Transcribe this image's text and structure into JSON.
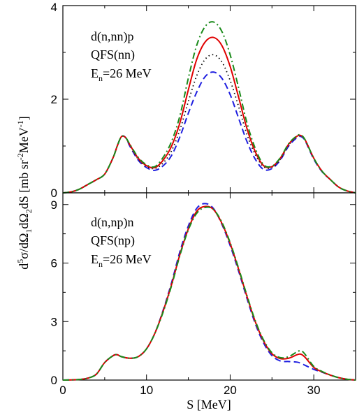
{
  "chart_data": [
    {
      "type": "line",
      "panel": "top",
      "annotation": [
        "d(n,nn)p",
        "QFS(nn)",
        "E",
        "n",
        "=26 MeV"
      ],
      "xlim": [
        0,
        35
      ],
      "ylim": [
        0,
        4
      ],
      "xticks": [
        0,
        10,
        20,
        30
      ],
      "yticks": [
        0,
        2,
        4
      ],
      "tick_labels_y": [
        "0",
        "2",
        "4"
      ],
      "grid": false,
      "series": [
        {
          "color": "#1f1fe0",
          "style": "dashed",
          "x": [
            0,
            1,
            2,
            3,
            4,
            5,
            6,
            6.5,
            7,
            7.5,
            8,
            9,
            10,
            11,
            12,
            13,
            14,
            15,
            16,
            17,
            18,
            19,
            20,
            21,
            22,
            23,
            24,
            25,
            26,
            27,
            28,
            28.5,
            29,
            30,
            31,
            32,
            33,
            34,
            35
          ],
          "y": [
            0,
            0.02,
            0.08,
            0.18,
            0.28,
            0.4,
            0.75,
            1.0,
            1.2,
            1.18,
            1.0,
            0.7,
            0.54,
            0.48,
            0.58,
            0.8,
            1.2,
            1.7,
            2.15,
            2.48,
            2.58,
            2.45,
            2.1,
            1.6,
            1.1,
            0.72,
            0.5,
            0.52,
            0.7,
            1.0,
            1.18,
            1.2,
            1.1,
            0.72,
            0.45,
            0.28,
            0.12,
            0.04,
            0
          ]
        },
        {
          "color": "#000000",
          "style": "dotted",
          "x": [
            0,
            1,
            2,
            3,
            4,
            5,
            6,
            6.5,
            7,
            7.5,
            8,
            9,
            10,
            11,
            12,
            13,
            14,
            15,
            16,
            17,
            18,
            19,
            20,
            21,
            22,
            23,
            24,
            25,
            26,
            27,
            28,
            28.5,
            29,
            30,
            31,
            32,
            33,
            34,
            35
          ],
          "y": [
            0,
            0.02,
            0.08,
            0.18,
            0.28,
            0.4,
            0.75,
            1.0,
            1.2,
            1.18,
            1.02,
            0.72,
            0.56,
            0.52,
            0.64,
            0.9,
            1.35,
            1.95,
            2.5,
            2.85,
            2.95,
            2.8,
            2.4,
            1.85,
            1.25,
            0.82,
            0.56,
            0.54,
            0.72,
            1.02,
            1.2,
            1.22,
            1.12,
            0.74,
            0.46,
            0.28,
            0.12,
            0.04,
            0
          ]
        },
        {
          "color": "#e00000",
          "style": "solid",
          "x": [
            0,
            1,
            2,
            3,
            4,
            5,
            6,
            6.5,
            7,
            7.5,
            8,
            9,
            10,
            11,
            12,
            13,
            14,
            15,
            16,
            17,
            18,
            19,
            20,
            21,
            22,
            23,
            24,
            25,
            26,
            27,
            28,
            28.5,
            29,
            30,
            31,
            32,
            33,
            34,
            35
          ],
          "y": [
            0,
            0.02,
            0.08,
            0.18,
            0.28,
            0.4,
            0.75,
            1.0,
            1.2,
            1.18,
            1.03,
            0.74,
            0.58,
            0.54,
            0.7,
            1.0,
            1.5,
            2.2,
            2.85,
            3.22,
            3.32,
            3.15,
            2.7,
            2.05,
            1.38,
            0.88,
            0.58,
            0.56,
            0.74,
            1.04,
            1.21,
            1.22,
            1.12,
            0.74,
            0.46,
            0.28,
            0.12,
            0.04,
            0
          ]
        },
        {
          "color": "#1a8a1a",
          "style": "dashdot",
          "x": [
            0,
            1,
            2,
            3,
            4,
            5,
            6,
            6.5,
            7,
            7.5,
            8,
            9,
            10,
            11,
            12,
            13,
            14,
            15,
            16,
            17,
            18,
            19,
            20,
            21,
            22,
            23,
            24,
            25,
            26,
            27,
            28,
            28.5,
            29,
            30,
            31,
            32,
            33,
            34,
            35
          ],
          "y": [
            0,
            0.02,
            0.08,
            0.18,
            0.28,
            0.4,
            0.75,
            1.0,
            1.2,
            1.18,
            1.04,
            0.76,
            0.6,
            0.56,
            0.76,
            1.1,
            1.65,
            2.45,
            3.15,
            3.55,
            3.65,
            3.45,
            2.95,
            2.25,
            1.5,
            0.95,
            0.6,
            0.57,
            0.75,
            1.05,
            1.22,
            1.23,
            1.12,
            0.74,
            0.46,
            0.28,
            0.12,
            0.04,
            0
          ]
        }
      ]
    },
    {
      "type": "line",
      "panel": "bottom",
      "annotation": [
        "d(n,np)n",
        "QFS(np)",
        "E",
        "n",
        "=26 MeV"
      ],
      "xlim": [
        0,
        35
      ],
      "ylim": [
        0,
        9.6
      ],
      "xticks": [
        0,
        10,
        20,
        30
      ],
      "yticks": [
        0,
        3,
        6,
        9
      ],
      "tick_labels_y": [
        "0",
        "3",
        "6",
        "9"
      ],
      "tick_labels_x": [
        "0",
        "10",
        "20",
        "30"
      ],
      "xlabel": "S [MeV]",
      "grid": false,
      "series": [
        {
          "color": "#1f1fe0",
          "style": "dashed",
          "x": [
            0,
            1,
            2,
            3,
            4,
            5,
            6,
            6.5,
            7,
            8,
            9,
            10,
            11,
            12,
            13,
            14,
            15,
            16,
            17,
            18,
            19,
            20,
            21,
            22,
            23,
            24,
            25,
            26,
            27,
            28,
            28.5,
            29,
            30,
            31,
            32,
            33,
            34,
            35
          ],
          "y": [
            0,
            0.01,
            0.03,
            0.1,
            0.3,
            0.9,
            1.25,
            1.3,
            1.2,
            1.12,
            1.2,
            1.6,
            2.4,
            3.6,
            5.0,
            6.6,
            7.9,
            8.8,
            9.05,
            8.8,
            8.0,
            6.9,
            5.6,
            4.2,
            2.9,
            1.9,
            1.25,
            0.98,
            0.95,
            0.92,
            0.85,
            0.75,
            0.55,
            0.4,
            0.25,
            0.12,
            0.04,
            0
          ]
        },
        {
          "color": "#e00000",
          "style": "solid",
          "x": [
            0,
            1,
            2,
            3,
            4,
            5,
            6,
            6.5,
            7,
            8,
            9,
            10,
            11,
            12,
            13,
            14,
            15,
            16,
            17,
            18,
            19,
            20,
            21,
            22,
            23,
            24,
            25,
            26,
            27,
            28,
            28.5,
            29,
            30,
            31,
            32,
            33,
            34,
            35
          ],
          "y": [
            0,
            0.01,
            0.03,
            0.1,
            0.3,
            0.9,
            1.25,
            1.3,
            1.2,
            1.12,
            1.2,
            1.6,
            2.4,
            3.55,
            4.9,
            6.45,
            7.75,
            8.65,
            8.9,
            8.75,
            8.05,
            7.0,
            5.7,
            4.3,
            3.0,
            2.0,
            1.35,
            1.1,
            1.12,
            1.3,
            1.32,
            1.15,
            0.65,
            0.42,
            0.25,
            0.12,
            0.04,
            0
          ]
        },
        {
          "color": "#1a8a1a",
          "style": "dashdot",
          "x": [
            0,
            1,
            2,
            3,
            4,
            5,
            6,
            6.5,
            7,
            8,
            9,
            10,
            11,
            12,
            13,
            14,
            15,
            16,
            17,
            18,
            19,
            20,
            21,
            22,
            23,
            24,
            25,
            26,
            27,
            28,
            28.5,
            29,
            30,
            31,
            32,
            33,
            34,
            35
          ],
          "y": [
            0,
            0.01,
            0.03,
            0.1,
            0.3,
            0.9,
            1.25,
            1.3,
            1.2,
            1.12,
            1.2,
            1.6,
            2.4,
            3.5,
            4.85,
            6.4,
            7.7,
            8.55,
            8.85,
            8.75,
            8.1,
            7.05,
            5.75,
            4.35,
            3.05,
            2.05,
            1.4,
            1.15,
            1.2,
            1.45,
            1.5,
            1.3,
            0.7,
            0.44,
            0.26,
            0.12,
            0.04,
            0
          ]
        }
      ]
    }
  ],
  "ylabel_parts": [
    "d",
    "5",
    "σ/dΩ",
    "1",
    "dΩ",
    "2",
    "dS [mb sr",
    "-2",
    "MeV",
    "-1",
    "]"
  ]
}
